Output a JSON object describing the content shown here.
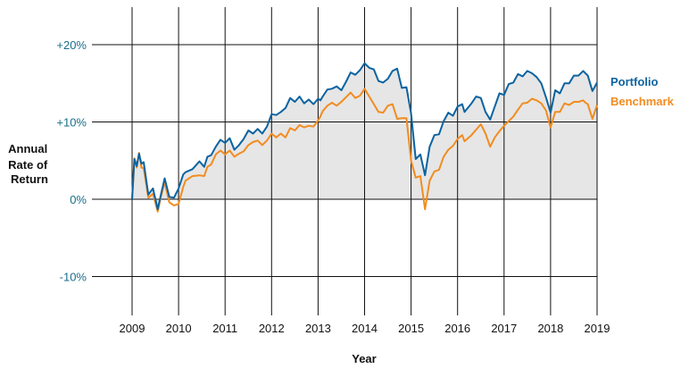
{
  "chart_data": {
    "type": "line",
    "title": "",
    "xlabel": "Year",
    "ylabel": "Annual Rate of Return",
    "ylabel_lines": [
      "Annual",
      "Rate of",
      "Return"
    ],
    "xlim": [
      2009,
      2019
    ],
    "ylim": [
      -15,
      25
    ],
    "x_ticks": [
      2009,
      2010,
      2011,
      2012,
      2013,
      2014,
      2015,
      2016,
      2017,
      2018,
      2019
    ],
    "x_tick_labels": [
      "2009",
      "2010",
      "2011",
      "2012",
      "2013",
      "2014",
      "2015",
      "2016",
      "2017",
      "2018",
      "2019"
    ],
    "y_ticks": [
      20,
      10,
      0,
      -10
    ],
    "y_tick_labels": [
      "+20%",
      "+10%",
      "0%",
      "-10%"
    ],
    "grid": true,
    "legend_position": "right",
    "colors": {
      "portfolio": "#0b63a0",
      "benchmark": "#f28c1f",
      "fill": "#e6e6e6",
      "grid": "#111111",
      "ytick": "#1a6e8a"
    },
    "series": [
      {
        "name": "Portfolio",
        "color": "#0b63a0",
        "filled": true,
        "x": [
          2009.0,
          2009.05,
          2009.1,
          2009.15,
          2009.2,
          2009.25,
          2009.35,
          2009.45,
          2009.55,
          2009.62,
          2009.7,
          2009.8,
          2009.9,
          2010.0,
          2010.1,
          2010.15,
          2010.3,
          2010.45,
          2010.55,
          2010.62,
          2010.7,
          2010.8,
          2010.9,
          2011.0,
          2011.1,
          2011.2,
          2011.3,
          2011.4,
          2011.5,
          2011.6,
          2011.7,
          2011.8,
          2011.9,
          2012.0,
          2012.1,
          2012.2,
          2012.3,
          2012.4,
          2012.5,
          2012.6,
          2012.7,
          2012.8,
          2012.9,
          2013.0,
          2013.05,
          2013.1,
          2013.2,
          2013.3,
          2013.4,
          2013.5,
          2013.6,
          2013.7,
          2013.8,
          2013.9,
          2014.0,
          2014.1,
          2014.2,
          2014.3,
          2014.4,
          2014.5,
          2014.6,
          2014.7,
          2014.8,
          2014.9,
          2015.0,
          2015.1,
          2015.2,
          2015.3,
          2015.4,
          2015.5,
          2015.6,
          2015.7,
          2015.8,
          2015.9,
          2016.0,
          2016.1,
          2016.15,
          2016.3,
          2016.4,
          2016.5,
          2016.6,
          2016.7,
          2016.8,
          2016.9,
          2017.0,
          2017.1,
          2017.2,
          2017.3,
          2017.4,
          2017.5,
          2017.6,
          2017.7,
          2017.8,
          2017.9,
          2018.0,
          2018.1,
          2018.2,
          2018.3,
          2018.4,
          2018.5,
          2018.6,
          2018.7,
          2018.75,
          2018.8,
          2018.9,
          2019.0
        ],
        "y": [
          0.0,
          5.2,
          4.3,
          5.9,
          4.6,
          4.8,
          0.6,
          1.4,
          -1.3,
          0.6,
          2.7,
          0.3,
          0.2,
          1.4,
          3.2,
          3.5,
          3.9,
          4.9,
          4.2,
          5.5,
          5.7,
          6.8,
          7.7,
          7.3,
          7.9,
          6.4,
          7.0,
          7.8,
          8.9,
          8.5,
          9.1,
          8.5,
          9.4,
          11.0,
          10.9,
          11.3,
          11.8,
          13.1,
          12.6,
          13.3,
          12.4,
          12.9,
          12.3,
          13.0,
          12.8,
          13.3,
          14.2,
          14.3,
          14.6,
          14.1,
          15.2,
          16.4,
          16.1,
          16.7,
          17.6,
          17.0,
          16.8,
          15.3,
          15.1,
          15.6,
          16.6,
          16.9,
          14.4,
          14.5,
          11.1,
          5.2,
          5.8,
          3.1,
          6.8,
          8.3,
          8.4,
          10.1,
          11.2,
          10.8,
          12.0,
          12.3,
          11.3,
          12.4,
          13.3,
          13.1,
          11.3,
          10.3,
          12.0,
          13.7,
          13.5,
          14.9,
          15.1,
          16.2,
          15.9,
          16.6,
          16.3,
          15.8,
          15.0,
          13.2,
          11.2,
          14.1,
          13.7,
          15.0,
          15.0,
          16.0,
          16.0,
          16.6,
          16.3,
          16.0,
          14.0,
          15.1
        ],
        "series_note": ""
      },
      {
        "name": "Benchmark",
        "color": "#f28c1f",
        "filled": false,
        "x": [
          2009.0,
          2009.05,
          2009.1,
          2009.15,
          2009.2,
          2009.25,
          2009.35,
          2009.45,
          2009.55,
          2009.62,
          2009.7,
          2009.8,
          2009.9,
          2010.0,
          2010.1,
          2010.15,
          2010.3,
          2010.45,
          2010.55,
          2010.62,
          2010.7,
          2010.8,
          2010.9,
          2011.0,
          2011.1,
          2011.2,
          2011.3,
          2011.4,
          2011.5,
          2011.6,
          2011.7,
          2011.8,
          2011.9,
          2012.0,
          2012.1,
          2012.2,
          2012.3,
          2012.4,
          2012.5,
          2012.6,
          2012.7,
          2012.8,
          2012.9,
          2013.0,
          2013.05,
          2013.1,
          2013.2,
          2013.3,
          2013.4,
          2013.5,
          2013.6,
          2013.7,
          2013.8,
          2013.9,
          2014.0,
          2014.1,
          2014.2,
          2014.3,
          2014.4,
          2014.5,
          2014.6,
          2014.7,
          2014.8,
          2014.9,
          2015.0,
          2015.1,
          2015.2,
          2015.3,
          2015.4,
          2015.5,
          2015.6,
          2015.7,
          2015.8,
          2015.9,
          2016.0,
          2016.1,
          2016.15,
          2016.3,
          2016.4,
          2016.5,
          2016.6,
          2016.7,
          2016.8,
          2016.9,
          2017.0,
          2017.1,
          2017.2,
          2017.3,
          2017.4,
          2017.5,
          2017.6,
          2017.7,
          2017.8,
          2017.9,
          2018.0,
          2018.1,
          2018.2,
          2018.3,
          2018.4,
          2018.5,
          2018.6,
          2018.7,
          2018.75,
          2018.8,
          2018.9,
          2019.0
        ],
        "y": [
          0.0,
          5.3,
          4.1,
          6.0,
          4.1,
          4.0,
          0.2,
          0.7,
          -1.6,
          0.3,
          2.2,
          -0.4,
          -0.8,
          -0.6,
          1.6,
          2.4,
          3.0,
          3.1,
          3.0,
          4.2,
          4.5,
          5.8,
          6.3,
          5.8,
          6.3,
          5.5,
          5.9,
          6.2,
          7.0,
          7.4,
          7.6,
          7.0,
          7.6,
          8.5,
          8.0,
          8.5,
          8.0,
          9.2,
          8.9,
          9.6,
          9.3,
          9.5,
          9.4,
          10.2,
          10.7,
          11.4,
          12.1,
          12.5,
          12.1,
          12.6,
          13.2,
          13.8,
          13.1,
          13.4,
          14.3,
          13.3,
          12.3,
          11.3,
          11.2,
          12.1,
          12.3,
          10.4,
          10.5,
          10.5,
          5.0,
          2.8,
          3.0,
          -1.3,
          2.4,
          3.6,
          3.8,
          5.5,
          6.4,
          6.9,
          7.8,
          8.3,
          7.5,
          8.3,
          9.0,
          9.7,
          8.5,
          6.8,
          8.0,
          8.8,
          9.5,
          10.1,
          10.7,
          11.6,
          12.4,
          12.5,
          13.0,
          12.8,
          12.4,
          11.5,
          9.3,
          11.3,
          11.3,
          12.4,
          12.2,
          12.6,
          12.6,
          12.8,
          12.5,
          12.3,
          10.4,
          12.2
        ]
      }
    ]
  }
}
